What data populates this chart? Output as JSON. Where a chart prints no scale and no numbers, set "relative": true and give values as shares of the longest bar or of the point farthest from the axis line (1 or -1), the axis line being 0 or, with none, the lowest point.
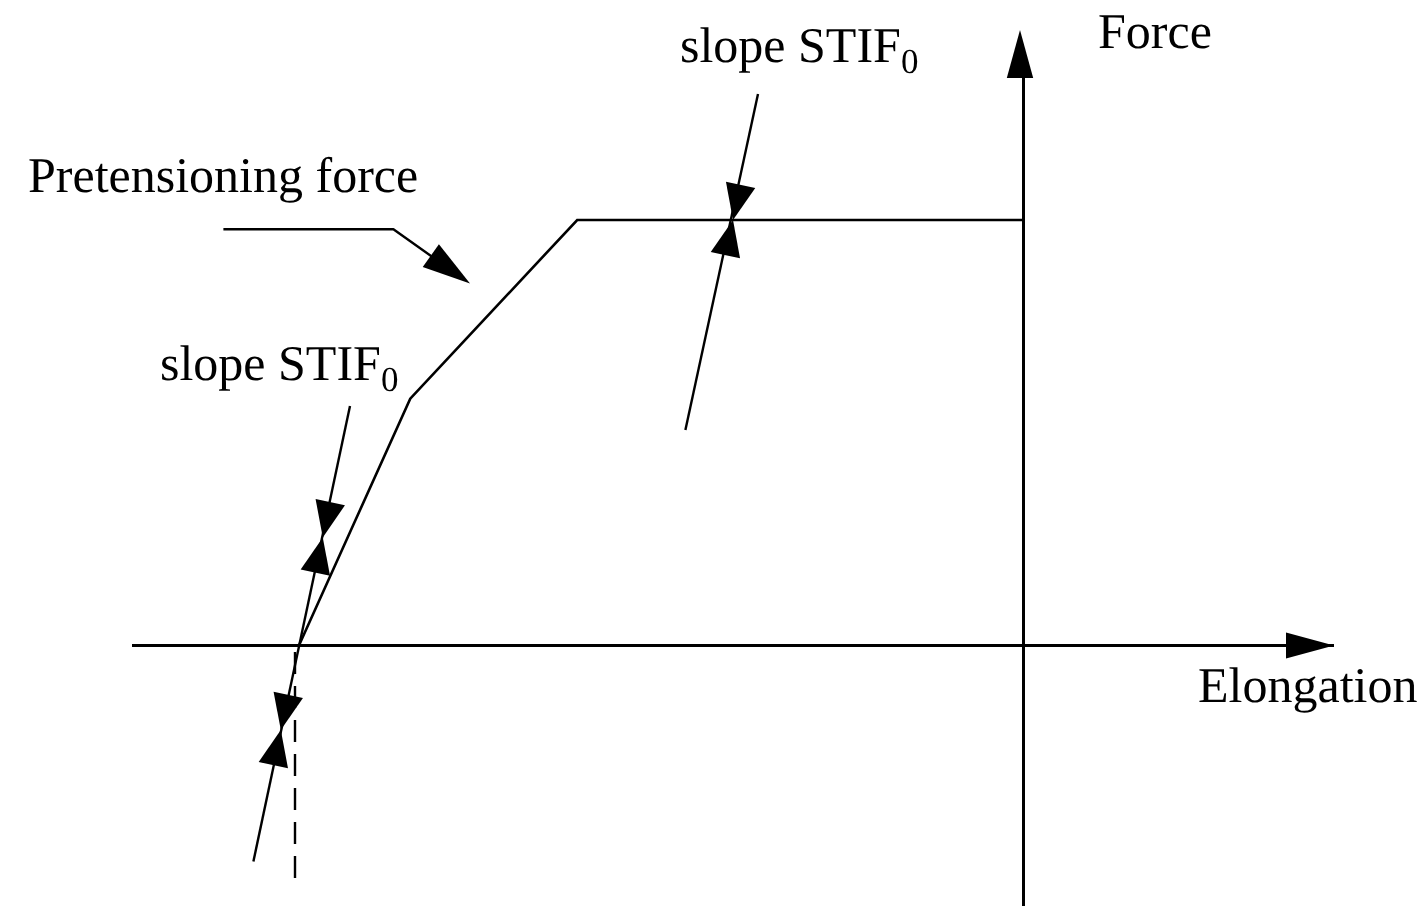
{
  "chart_data": {
    "type": "line",
    "relative": true,
    "categories": [
      null,
      null,
      null,
      null,
      null,
      null,
      null,
      null,
      null,
      null,
      null,
      null,
      null,
      null
    ],
    "series": [
      {
        "color": "#000000",
        "values": [
          0,
          0.29,
          0.58,
          0.72,
          0.86,
          1,
          1,
          1,
          1,
          1,
          1,
          1,
          1,
          1
        ]
      }
    ],
    "xlabel": "Elongation",
    "ylabel": "Force",
    "annotations": [
      "slope STIF$_{0}$",
      "Pretensioning force",
      "slope STIF$_{0}$"
    ],
    "line_style": "solid"
  }
}
